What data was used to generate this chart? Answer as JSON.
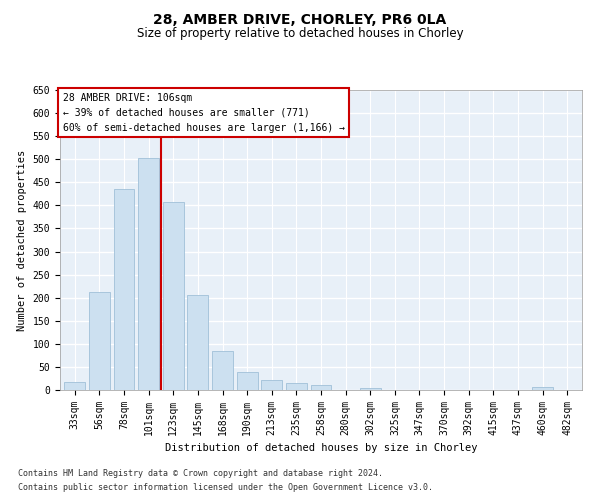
{
  "title": "28, AMBER DRIVE, CHORLEY, PR6 0LA",
  "subtitle": "Size of property relative to detached houses in Chorley",
  "xlabel": "Distribution of detached houses by size in Chorley",
  "ylabel": "Number of detached properties",
  "footnote1": "Contains HM Land Registry data © Crown copyright and database right 2024.",
  "footnote2": "Contains public sector information licensed under the Open Government Licence v3.0.",
  "annotation_line1": "28 AMBER DRIVE: 106sqm",
  "annotation_line2": "← 39% of detached houses are smaller (771)",
  "annotation_line3": "60% of semi-detached houses are larger (1,166) →",
  "bar_color": "#cce0f0",
  "bar_edge_color": "#a0c0d8",
  "vline_color": "#cc0000",
  "annotation_box_color": "#cc0000",
  "background_color": "#e8f0f8",
  "grid_color": "#ffffff",
  "categories": [
    "33sqm",
    "56sqm",
    "78sqm",
    "101sqm",
    "123sqm",
    "145sqm",
    "168sqm",
    "190sqm",
    "213sqm",
    "235sqm",
    "258sqm",
    "280sqm",
    "302sqm",
    "325sqm",
    "347sqm",
    "370sqm",
    "392sqm",
    "415sqm",
    "437sqm",
    "460sqm",
    "482sqm"
  ],
  "values": [
    17,
    212,
    435,
    502,
    408,
    205,
    85,
    40,
    22,
    16,
    10,
    0,
    5,
    0,
    0,
    0,
    0,
    0,
    0,
    7,
    0
  ],
  "vline_x": 3.5,
  "ylim": [
    0,
    650
  ],
  "yticks": [
    0,
    50,
    100,
    150,
    200,
    250,
    300,
    350,
    400,
    450,
    500,
    550,
    600,
    650
  ],
  "title_fontsize": 10,
  "subtitle_fontsize": 8.5,
  "tick_fontsize": 7,
  "ylabel_fontsize": 7.5,
  "xlabel_fontsize": 7.5,
  "footnote_fontsize": 6
}
